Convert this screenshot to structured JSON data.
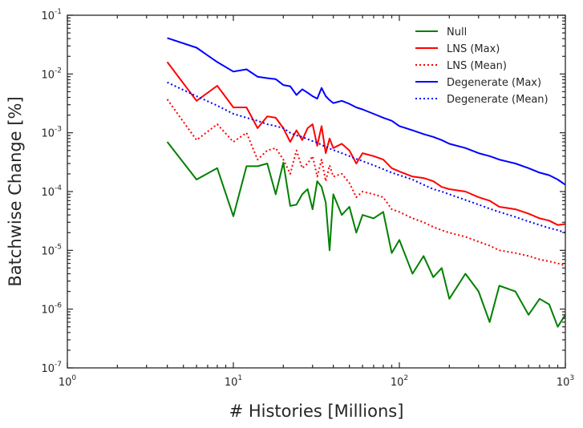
{
  "chart_data": {
    "type": "line",
    "xscale": "log",
    "yscale": "log",
    "xlim": [
      1,
      1000
    ],
    "ylim": [
      1e-07,
      0.1
    ],
    "xlabel": "# Histories [Millions]",
    "ylabel": "Batchwise Change [%]",
    "title": "",
    "grid": false,
    "legend_position": "top-right",
    "x_ticks": [
      {
        "value": 1,
        "base": "10",
        "exp": "0"
      },
      {
        "value": 10,
        "base": "10",
        "exp": "1"
      },
      {
        "value": 100,
        "base": "10",
        "exp": "2"
      },
      {
        "value": 1000,
        "base": "10",
        "exp": "3"
      }
    ],
    "y_ticks": [
      {
        "value": 1e-07,
        "base": "10",
        "exp": "-7"
      },
      {
        "value": 1e-06,
        "base": "10",
        "exp": "-6"
      },
      {
        "value": 1e-05,
        "base": "10",
        "exp": "-5"
      },
      {
        "value": 0.0001,
        "base": "10",
        "exp": "-4"
      },
      {
        "value": 0.001,
        "base": "10",
        "exp": "-3"
      },
      {
        "value": 0.01,
        "base": "10",
        "exp": "-2"
      },
      {
        "value": 0.1,
        "base": "10",
        "exp": "-1"
      }
    ],
    "series": [
      {
        "name": "Null",
        "color": "#008000",
        "dash": "solid",
        "x": [
          4,
          6,
          8,
          10,
          12,
          14,
          16,
          18,
          20,
          22,
          24,
          26,
          28,
          30,
          32,
          34,
          36,
          38,
          40,
          45,
          50,
          55,
          60,
          70,
          80,
          90,
          100,
          120,
          140,
          160,
          180,
          200,
          250,
          300,
          350,
          400,
          500,
          600,
          700,
          800,
          900,
          1000
        ],
        "y": [
          0.0007,
          0.00016,
          0.00025,
          3.8e-05,
          0.00027,
          0.00027,
          0.0003,
          9e-05,
          0.00031,
          5.7e-05,
          6e-05,
          9e-05,
          0.00011,
          5e-05,
          0.00015,
          0.00012,
          6.5e-05,
          1e-05,
          9e-05,
          4e-05,
          5.5e-05,
          2e-05,
          4e-05,
          3.5e-05,
          4.5e-05,
          9e-06,
          1.5e-05,
          4e-06,
          8e-06,
          3.5e-06,
          5e-06,
          1.5e-06,
          4e-06,
          2e-06,
          6e-07,
          2.5e-06,
          2e-06,
          8e-07,
          1.5e-06,
          1.2e-06,
          5e-07,
          8e-07
        ]
      },
      {
        "name": "LNS (Max)",
        "color": "#ff0000",
        "dash": "solid",
        "x": [
          4,
          6,
          8,
          10,
          12,
          14,
          16,
          18,
          20,
          22,
          24,
          26,
          28,
          30,
          32,
          34,
          36,
          38,
          40,
          45,
          50,
          55,
          60,
          70,
          80,
          90,
          100,
          120,
          140,
          160,
          180,
          200,
          250,
          300,
          350,
          400,
          500,
          600,
          700,
          800,
          900,
          1000
        ],
        "y": [
          0.016,
          0.0035,
          0.0063,
          0.0027,
          0.0027,
          0.0012,
          0.0019,
          0.0018,
          0.0012,
          0.0007,
          0.0011,
          0.00075,
          0.0012,
          0.0014,
          0.0006,
          0.0013,
          0.00045,
          0.0008,
          0.00055,
          0.00065,
          0.0005,
          0.0003,
          0.00045,
          0.0004,
          0.00035,
          0.00025,
          0.00022,
          0.00018,
          0.00017,
          0.00015,
          0.00012,
          0.00011,
          0.0001,
          8e-05,
          7e-05,
          5.5e-05,
          5e-05,
          4.2e-05,
          3.5e-05,
          3.2e-05,
          2.7e-05,
          2.8e-05
        ]
      },
      {
        "name": "LNS (Mean)",
        "color": "#ff0000",
        "dash": "dotted",
        "x": [
          4,
          6,
          8,
          10,
          12,
          14,
          16,
          18,
          20,
          22,
          24,
          26,
          28,
          30,
          32,
          34,
          36,
          38,
          40,
          45,
          50,
          55,
          60,
          70,
          80,
          90,
          100,
          120,
          140,
          160,
          180,
          200,
          250,
          300,
          350,
          400,
          500,
          600,
          700,
          800,
          900,
          1000
        ],
        "y": [
          0.0037,
          0.00075,
          0.0014,
          0.0007,
          0.001,
          0.00035,
          0.0005,
          0.00055,
          0.00035,
          0.0002,
          0.0005,
          0.00025,
          0.0003,
          0.0004,
          0.00018,
          0.00035,
          0.00015,
          0.00028,
          0.00018,
          0.0002,
          0.00014,
          8e-05,
          0.0001,
          9e-05,
          8e-05,
          5e-05,
          4.5e-05,
          3.5e-05,
          3e-05,
          2.5e-05,
          2.2e-05,
          2e-05,
          1.7e-05,
          1.4e-05,
          1.2e-05,
          1e-05,
          9e-06,
          8e-06,
          7e-06,
          6.5e-06,
          6e-06,
          5.5e-06
        ]
      },
      {
        "name": "Degenerate (Max)",
        "color": "#0000ff",
        "dash": "solid",
        "x": [
          4,
          6,
          8,
          10,
          12,
          14,
          16,
          18,
          20,
          22,
          24,
          26,
          28,
          30,
          32,
          34,
          36,
          38,
          40,
          45,
          50,
          55,
          60,
          70,
          80,
          90,
          100,
          120,
          140,
          160,
          180,
          200,
          250,
          300,
          350,
          400,
          500,
          600,
          700,
          800,
          900,
          1000
        ],
        "y": [
          0.041,
          0.028,
          0.016,
          0.011,
          0.012,
          0.009,
          0.0085,
          0.0082,
          0.0065,
          0.0062,
          0.0044,
          0.0055,
          0.0048,
          0.0042,
          0.0038,
          0.0058,
          0.0042,
          0.0036,
          0.0032,
          0.0035,
          0.0031,
          0.0027,
          0.0025,
          0.0021,
          0.0018,
          0.0016,
          0.0013,
          0.0011,
          0.00095,
          0.00085,
          0.00075,
          0.00065,
          0.00055,
          0.00045,
          0.0004,
          0.00035,
          0.0003,
          0.00025,
          0.00021,
          0.00019,
          0.00016,
          0.00013
        ]
      },
      {
        "name": "Degenerate (Mean)",
        "color": "#0000ff",
        "dash": "dotted",
        "x": [
          4,
          6,
          8,
          10,
          12,
          14,
          16,
          18,
          20,
          22,
          24,
          26,
          28,
          30,
          32,
          34,
          36,
          38,
          40,
          45,
          50,
          55,
          60,
          70,
          80,
          90,
          100,
          120,
          140,
          160,
          180,
          200,
          250,
          300,
          350,
          400,
          500,
          600,
          700,
          800,
          900,
          1000
        ],
        "y": [
          0.0072,
          0.0042,
          0.0029,
          0.0021,
          0.0018,
          0.0016,
          0.0014,
          0.0013,
          0.0012,
          0.001,
          0.0009,
          0.00085,
          0.00078,
          0.00072,
          0.00068,
          0.00062,
          0.00058,
          0.00054,
          0.00051,
          0.00045,
          0.0004,
          0.00036,
          0.00033,
          0.00028,
          0.00024,
          0.00021,
          0.00019,
          0.00016,
          0.00013,
          0.00011,
          0.0001,
          9e-05,
          7.2e-05,
          6e-05,
          5.1e-05,
          4.5e-05,
          3.7e-05,
          3.1e-05,
          2.7e-05,
          2.4e-05,
          2.2e-05,
          2e-05
        ]
      }
    ]
  }
}
